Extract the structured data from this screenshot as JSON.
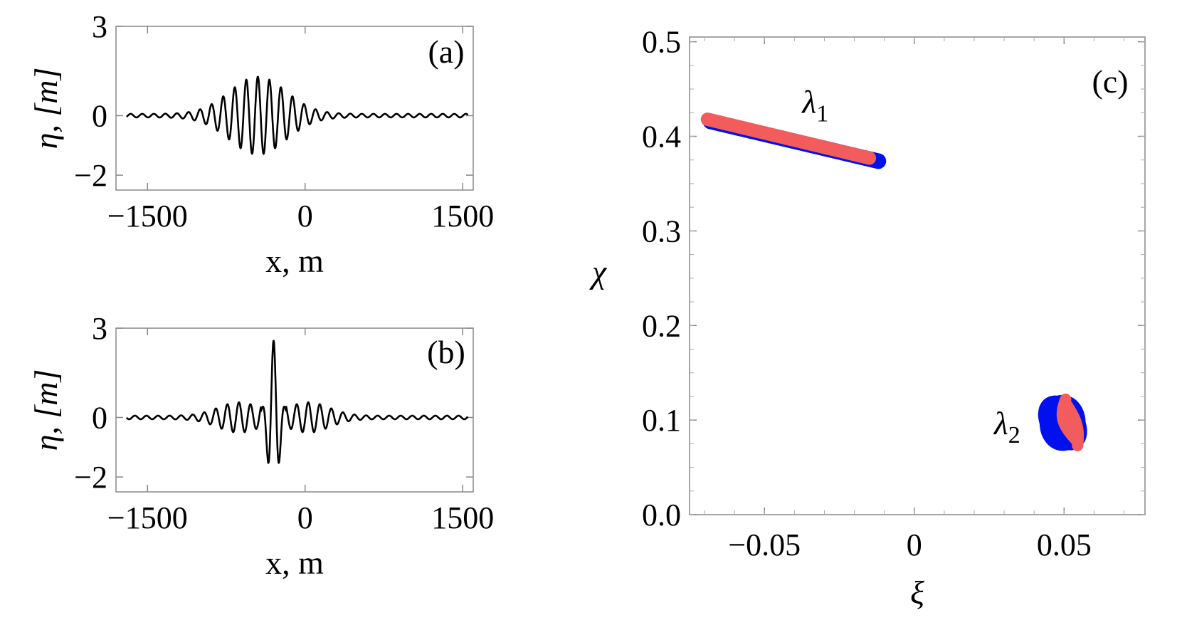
{
  "chart_data": [
    {
      "panel": "(a)",
      "type": "line",
      "xlabel": "x, m",
      "ylabel": "η, [m]",
      "xlim": [
        -1800,
        1600
      ],
      "ylim": [
        -2.5,
        3
      ],
      "xticks": [
        -1500,
        0,
        1500
      ],
      "xtick_labels": [
        "−1500",
        "0",
        "1500"
      ],
      "yticks": [
        -2,
        0,
        3
      ],
      "ytick_labels": [
        "−2",
        "0",
        "3"
      ],
      "series": [
        {
          "wave": {
            "kind": "gaussian_packet",
            "center": -450,
            "width": 380,
            "amplitude": 1.25,
            "wavelength": 110,
            "tail": 0.06
          }
        }
      ]
    },
    {
      "panel": "(b)",
      "type": "line",
      "xlabel": "x, m",
      "ylabel": "η, [m]",
      "xlim": [
        -1800,
        1600
      ],
      "ylim": [
        -2.5,
        3
      ],
      "xticks": [
        -1500,
        0,
        1500
      ],
      "xtick_labels": [
        "−1500",
        "0",
        "1500"
      ],
      "yticks": [
        -2,
        0,
        3
      ],
      "ytick_labels": [
        "−2",
        "0",
        "3"
      ],
      "series": [
        {
          "wave": {
            "kind": "focused_packet",
            "center": -300,
            "peak": 2.9,
            "trough": -2.1,
            "side_amplitude": 0.45,
            "wavelength": 110,
            "tail": 0.06
          }
        }
      ]
    },
    {
      "panel": "(c)",
      "type": "scatter",
      "xlabel": "ξ",
      "ylabel": "χ",
      "xlim": [
        -0.075,
        0.077
      ],
      "ylim": [
        0,
        0.505
      ],
      "xticks": [
        -0.05,
        0,
        0.05
      ],
      "xtick_labels": [
        "−0.05",
        "0",
        "0.05"
      ],
      "yticks": [
        0,
        0.1,
        0.2,
        0.3,
        0.4,
        0.5
      ],
      "ytick_labels": [
        "0.0",
        "0.1",
        "0.2",
        "0.3",
        "0.4",
        "0.5"
      ],
      "annotations": [
        {
          "text": "λ",
          "sub": "1",
          "x": -0.033,
          "y": 0.425
        },
        {
          "text": "λ",
          "sub": "2",
          "x": 0.031,
          "y": 0.085
        }
      ],
      "series": [
        {
          "color": "#0011ee",
          "clusters": [
            {
              "shape": "band",
              "from": [
                -0.068,
                0.418
              ],
              "to": [
                -0.012,
                0.376
              ],
              "thickness": 0.012
            },
            {
              "shape": "blob",
              "center": [
                0.0495,
                0.097
              ],
              "rx": 0.0065,
              "ry": 0.032
            }
          ]
        },
        {
          "color": "#f25c5c",
          "clusters": [
            {
              "shape": "band",
              "from": [
                -0.069,
                0.418
              ],
              "to": [
                -0.015,
                0.377
              ],
              "thickness": 0.008
            },
            {
              "shape": "loop",
              "from": [
                0.0505,
                0.122
              ],
              "to": [
                0.0545,
                0.077
              ],
              "width": 0.0028
            }
          ]
        }
      ]
    }
  ]
}
